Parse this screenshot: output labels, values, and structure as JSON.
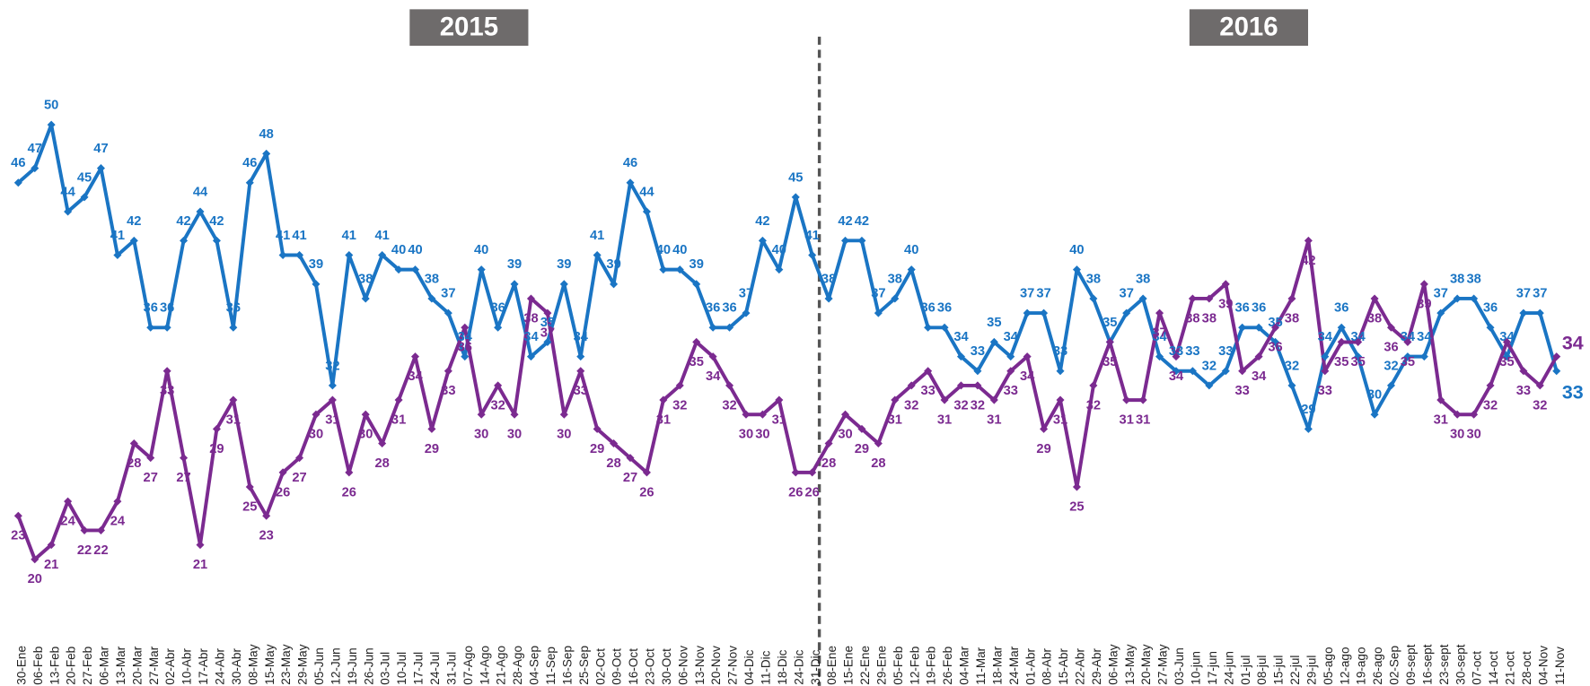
{
  "chart_data": {
    "type": "line",
    "annotations": [
      "2015",
      "2016"
    ],
    "categories": [
      "30-Ene",
      "06-Feb",
      "13-Feb",
      "20-Feb",
      "27-Feb",
      "06-Mar",
      "13-Mar",
      "20-Mar",
      "27-Mar",
      "02-Abr",
      "10-Abr",
      "17-Abr",
      "24-Abr",
      "30-Abr",
      "08-May",
      "15-May",
      "23-May",
      "29-May",
      "05-Jun",
      "12-Jun",
      "19-Jun",
      "26-Jun",
      "03-Jul",
      "10-Jul",
      "17-Jul",
      "24-Jul",
      "31-Jul",
      "07-Ago",
      "14-Ago",
      "21-Ago",
      "28-Ago",
      "04-Sep",
      "11-Sep",
      "16-Sep",
      "25-Sep",
      "02-Oct",
      "09-Oct",
      "16-Oct",
      "23-Oct",
      "30-Oct",
      "06-Nov",
      "13-Nov",
      "20-Nov",
      "27-Nov",
      "04-Dic",
      "11-Dic",
      "18-Dic",
      "24-Dic",
      "31-Dic",
      "08-Ene",
      "15-Ene",
      "22-Ene",
      "29-Ene",
      "05-Feb",
      "12-Feb",
      "19-Feb",
      "26-Feb",
      "04-Mar",
      "11-Mar",
      "18-Mar",
      "24-Mar",
      "01-Abr",
      "08-Abr",
      "15-Abr",
      "22-Abr",
      "29-Abr",
      "06-May",
      "13-May",
      "20-May",
      "27-May",
      "03-Jun",
      "10-jun",
      "17-jun",
      "24-jun",
      "01-jul",
      "08-jul",
      "15-jul",
      "22-jul",
      "29-jul",
      "05-ago",
      "12-ago",
      "19-ago",
      "26-ago",
      "02-Sep",
      "09-sept",
      "16-sept",
      "23-sept",
      "30-sept",
      "07-oct",
      "14-oct",
      "21-oct",
      "28-oct",
      "04-Nov",
      "11-Nov"
    ],
    "series": [
      {
        "color": "#1a75c4",
        "label_position": "above",
        "values": [
          46,
          47,
          50,
          44,
          45,
          47,
          41,
          42,
          36,
          36,
          42,
          44,
          42,
          36,
          46,
          48,
          41,
          41,
          39,
          32,
          41,
          38,
          41,
          40,
          40,
          38,
          37,
          34,
          40,
          36,
          39,
          34,
          35,
          39,
          34,
          41,
          39,
          46,
          44,
          40,
          40,
          39,
          36,
          36,
          37,
          42,
          40,
          45,
          41,
          38,
          42,
          42,
          37,
          38,
          40,
          36,
          36,
          34,
          33,
          35,
          34,
          37,
          37,
          33,
          40,
          38,
          35,
          37,
          38,
          34,
          33,
          33,
          32,
          33,
          36,
          36,
          35,
          32,
          29,
          34,
          36,
          34,
          30,
          32,
          34,
          34,
          37,
          38,
          38,
          36,
          34,
          37,
          37,
          33
        ]
      },
      {
        "color": "#7b2a90",
        "label_position": "below",
        "values": [
          23,
          20,
          21,
          24,
          22,
          22,
          24,
          28,
          27,
          33,
          27,
          21,
          29,
          31,
          25,
          23,
          26,
          27,
          30,
          31,
          26,
          30,
          28,
          31,
          34,
          29,
          33,
          36,
          30,
          32,
          30,
          38,
          37,
          30,
          33,
          29,
          28,
          27,
          26,
          31,
          32,
          35,
          34,
          32,
          30,
          30,
          31,
          26,
          26,
          28,
          30,
          29,
          28,
          31,
          32,
          33,
          31,
          32,
          32,
          31,
          33,
          34,
          29,
          31,
          25,
          32,
          35,
          31,
          31,
          37,
          34,
          38,
          38,
          39,
          33,
          34,
          36,
          38,
          42,
          33,
          35,
          35,
          38,
          36,
          35,
          39,
          31,
          30,
          30,
          32,
          35,
          33,
          32,
          34
        ]
      }
    ],
    "ylim": [
      17,
      55
    ],
    "grid": false
  }
}
